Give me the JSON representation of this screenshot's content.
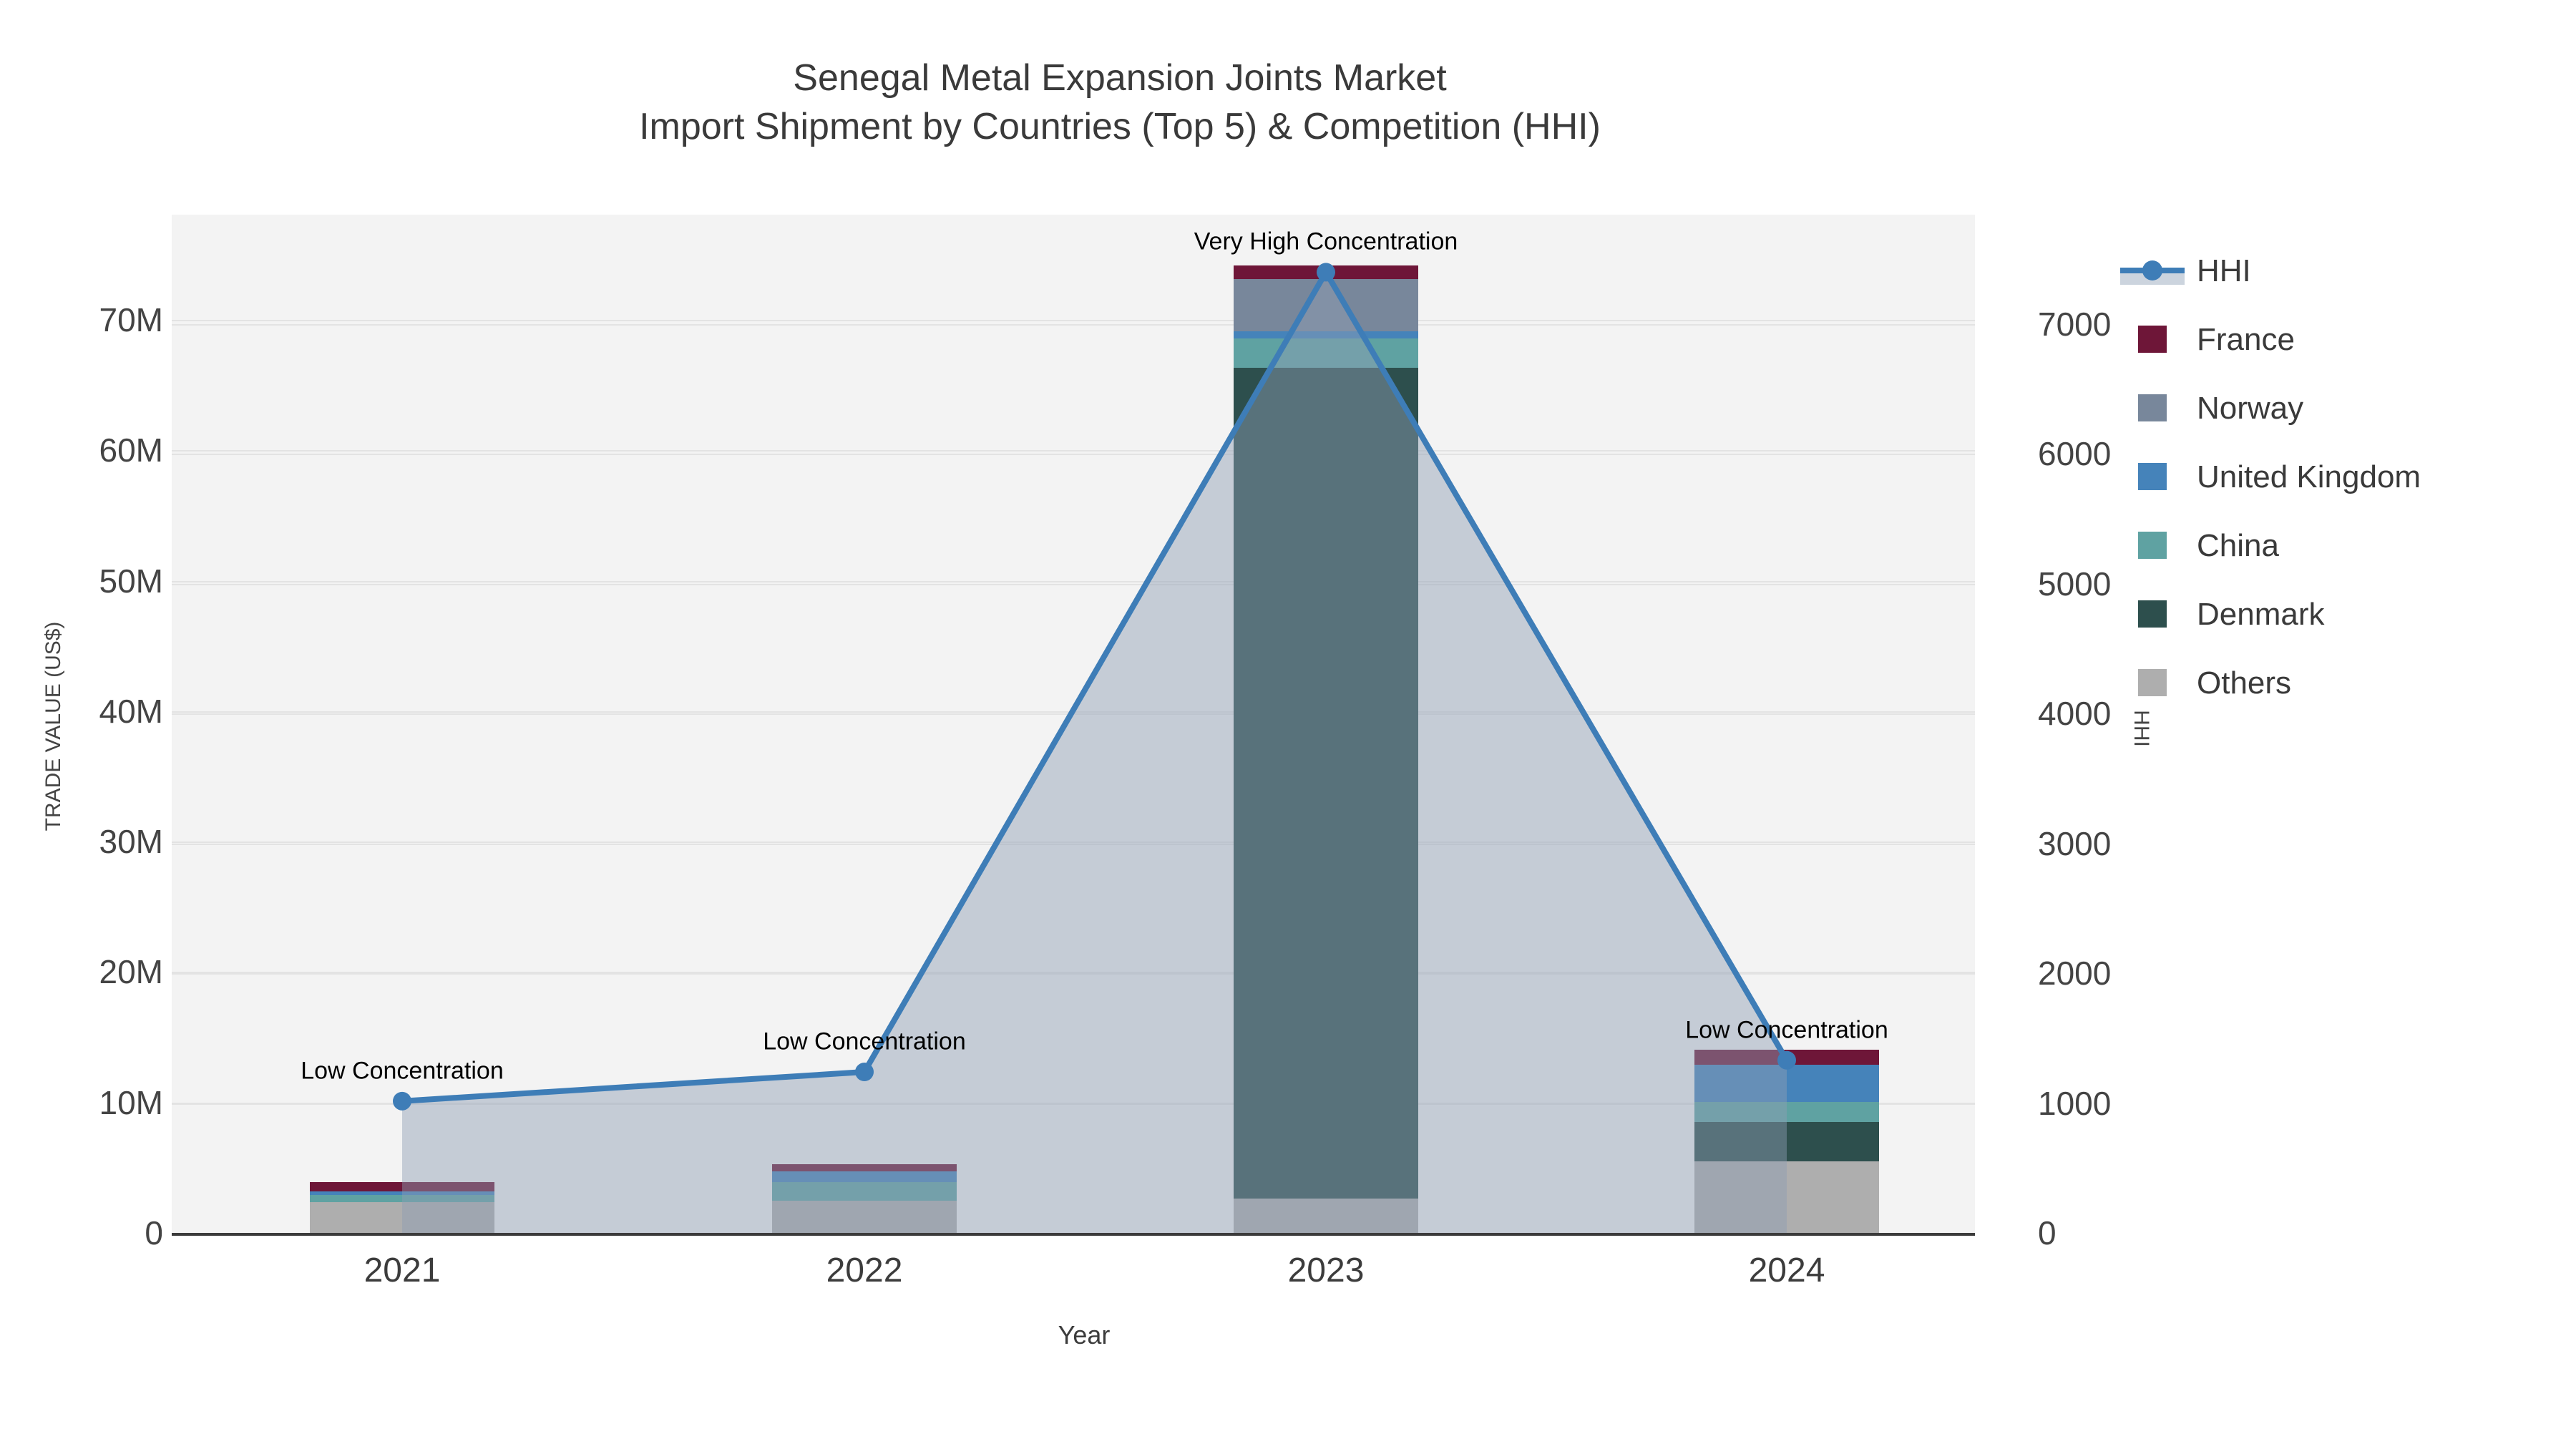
{
  "title": {
    "line1": "Senegal Metal Expansion Joints Market",
    "line2": "Import Shipment by Countries (Top 5) & Competition (HHI)"
  },
  "axes": {
    "x": {
      "title": "Year",
      "tick_labels": [
        "2021",
        "2022",
        "2023",
        "2024"
      ]
    },
    "y_left": {
      "title": "TRADE VALUE (US$)",
      "tick_labels": [
        "0",
        "10M",
        "20M",
        "30M",
        "40M",
        "50M",
        "60M",
        "70M"
      ]
    },
    "y_right": {
      "title": "HHI",
      "tick_labels": [
        "0",
        "1000",
        "2000",
        "3000",
        "4000",
        "5000",
        "6000",
        "7000"
      ]
    }
  },
  "legend": {
    "items": [
      {
        "label": "HHI",
        "type": "line",
        "color": "#3e7db7"
      },
      {
        "label": "France",
        "type": "square",
        "color": "#6e1638"
      },
      {
        "label": "Norway",
        "type": "square",
        "color": "#78879b"
      },
      {
        "label": "United Kingdom",
        "type": "square",
        "color": "#4583ba"
      },
      {
        "label": "China",
        "type": "square",
        "color": "#5fa2a2"
      },
      {
        "label": "Denmark",
        "type": "square",
        "color": "#2d4f4d"
      },
      {
        "label": "Others",
        "type": "square",
        "color": "#aeaeae"
      }
    ]
  },
  "chart_data": {
    "type": "bar",
    "subtype": "stacked-bars-with-line-overlay",
    "categories": [
      "2021",
      "2022",
      "2023",
      "2024"
    ],
    "bar_unit": "M US$",
    "stack_order": "bottom_to_top",
    "series": [
      {
        "name": "Others",
        "color": "#aeaeae",
        "values": [
          2.36,
          2.47,
          2.63,
          5.49
        ]
      },
      {
        "name": "Denmark",
        "color": "#2d4f4d",
        "values": [
          0.0,
          0.0,
          63.7,
          3.02
        ]
      },
      {
        "name": "China",
        "color": "#5fa2a2",
        "values": [
          0.55,
          1.43,
          2.25,
          1.54
        ]
      },
      {
        "name": "United Kingdom",
        "color": "#4583ba",
        "values": [
          0.27,
          0.82,
          0.55,
          2.85
        ]
      },
      {
        "name": "Norway",
        "color": "#78879b",
        "values": [
          0.0,
          0.0,
          4.0,
          0.0
        ]
      },
      {
        "name": "France",
        "color": "#6e1638",
        "values": [
          0.71,
          0.55,
          1.04,
          1.15
        ]
      }
    ],
    "bar_totals": [
      3.89,
      5.27,
      74.17,
      14.05
    ],
    "line_series": {
      "name": "HHI",
      "axis": "right",
      "values": [
        1015,
        1240,
        7400,
        1330
      ]
    },
    "annotations": [
      {
        "text": "Low Concentration",
        "category": "2021"
      },
      {
        "text": "Low Concentration",
        "category": "2022"
      },
      {
        "text": "Very High Concentration",
        "category": "2023"
      },
      {
        "text": "Low Concentration",
        "category": "2024"
      }
    ],
    "xlabel": "Year",
    "ylabel_left": "TRADE VALUE (US$)",
    "ylabel_right": "HHI",
    "ylim_left": [
      0,
      78
    ],
    "ylim_right": [
      0,
      7800
    ],
    "grid": true,
    "legend_position": "right"
  },
  "colors": {
    "plot_bg": "#f3f3f3",
    "grid": "#e3e3e3",
    "axis_line": "#3b3b3b",
    "hhi_line": "#3e7db7",
    "area_fill": "rgba(141,158,180,0.45)",
    "title_text": "#3a3a3a",
    "tick_text": "#444444"
  }
}
